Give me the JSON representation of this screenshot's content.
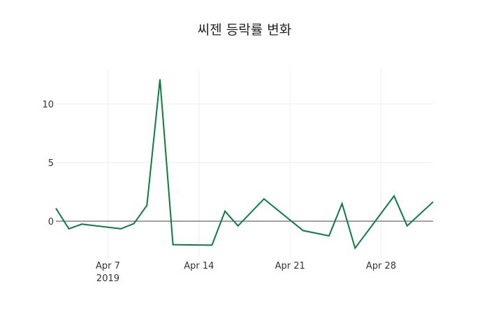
{
  "title": "씨젠 등락률 변화",
  "colors": {
    "line": "#0a7d3e",
    "grid": "#eeeeee",
    "zeroline": "#444444"
  },
  "chart_data": {
    "type": "line",
    "title": "씨젠 등락률 변화",
    "xlabel": "",
    "ylabel": "",
    "x": [
      "2019-04-03",
      "2019-04-04",
      "2019-04-05",
      "2019-04-08",
      "2019-04-09",
      "2019-04-10",
      "2019-04-11",
      "2019-04-12",
      "2019-04-15",
      "2019-04-16",
      "2019-04-17",
      "2019-04-19",
      "2019-04-22",
      "2019-04-24",
      "2019-04-25",
      "2019-04-26",
      "2019-04-29",
      "2019-04-30",
      "2019-05-02"
    ],
    "series": [
      {
        "name": "등락률",
        "values": [
          1.1,
          -0.65,
          -0.25,
          -0.65,
          -0.2,
          1.35,
          12.1,
          -2.0,
          -2.05,
          0.85,
          -0.4,
          1.9,
          -0.8,
          -1.25,
          1.5,
          -2.3,
          2.15,
          -0.4,
          1.65
        ]
      }
    ],
    "x_ticks": [
      {
        "label": "Apr 7",
        "sublabel": "2019",
        "date": "2019-04-07"
      },
      {
        "label": "Apr 14",
        "date": "2019-04-14"
      },
      {
        "label": "Apr 21",
        "date": "2019-04-21"
      },
      {
        "label": "Apr 28",
        "date": "2019-04-28"
      }
    ],
    "y_ticks": [
      "0",
      "5",
      "10"
    ],
    "ylim": [
      -3,
      13
    ],
    "xlim": [
      "2019-04-03",
      "2019-05-02"
    ],
    "grid": true,
    "legend": "none"
  }
}
